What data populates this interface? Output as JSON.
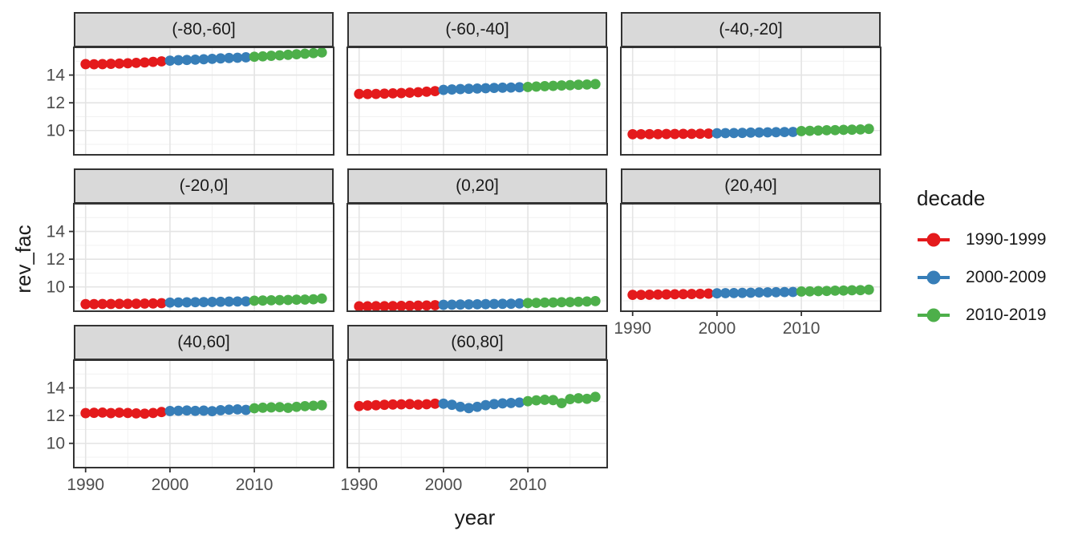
{
  "figure": {
    "y_axis_title": "rev_fac",
    "x_axis_title": "year",
    "legend": {
      "title": "decade",
      "items": [
        {
          "label": "1990-1999",
          "color": "#E41A1C"
        },
        {
          "label": "2000-2009",
          "color": "#377EB8"
        },
        {
          "label": "2010-2019",
          "color": "#4DAF4A"
        }
      ]
    }
  },
  "chart_data": {
    "type": "scatter",
    "title": "",
    "xlabel": "year",
    "ylabel": "rev_fac",
    "facet_labels": [
      "(-80,-60]",
      "(-60,-40]",
      "(-40,-20]",
      "(-20,0]",
      "(0,20]",
      "(20,40]",
      "(40,60]",
      "(60,80]"
    ],
    "x": [
      1990,
      1991,
      1992,
      1993,
      1994,
      1995,
      1996,
      1997,
      1998,
      1999,
      2000,
      2001,
      2002,
      2003,
      2004,
      2005,
      2006,
      2007,
      2008,
      2009,
      2010,
      2011,
      2012,
      2013,
      2014,
      2015,
      2016,
      2017,
      2018
    ],
    "series_by_decade": [
      {
        "name": "1990-1999",
        "color": "#E41A1C",
        "year_min": 1990,
        "year_max": 1999
      },
      {
        "name": "2000-2009",
        "color": "#377EB8",
        "year_min": 2000,
        "year_max": 2009
      },
      {
        "name": "2010-2019",
        "color": "#4DAF4A",
        "year_min": 2010,
        "year_max": 2019
      }
    ],
    "facets": [
      {
        "label": "(-80,-60]",
        "values": [
          14.79,
          14.78,
          14.79,
          14.81,
          14.83,
          14.85,
          14.88,
          14.91,
          14.95,
          14.99,
          15.04,
          15.07,
          15.09,
          15.11,
          15.14,
          15.17,
          15.2,
          15.23,
          15.25,
          15.28,
          15.32,
          15.35,
          15.39,
          15.42,
          15.46,
          15.5,
          15.54,
          15.58,
          15.63
        ]
      },
      {
        "label": "(-60,-40]",
        "values": [
          12.64,
          12.63,
          12.64,
          12.66,
          12.68,
          12.7,
          12.73,
          12.76,
          12.8,
          12.84,
          12.93,
          12.96,
          12.99,
          13.01,
          13.03,
          13.05,
          13.07,
          13.09,
          13.1,
          13.12,
          13.14,
          13.17,
          13.2,
          13.22,
          13.25,
          13.27,
          13.3,
          13.32,
          13.35
        ]
      },
      {
        "label": "(-40,-20]",
        "values": [
          9.73,
          9.73,
          9.74,
          9.74,
          9.75,
          9.75,
          9.76,
          9.76,
          9.77,
          9.78,
          9.8,
          9.81,
          9.82,
          9.83,
          9.85,
          9.86,
          9.87,
          9.88,
          9.89,
          9.9,
          9.96,
          9.98,
          10.0,
          10.02,
          10.03,
          10.05,
          10.06,
          10.08,
          10.12
        ]
      },
      {
        "label": "(-20,0]",
        "values": [
          8.76,
          8.76,
          8.77,
          8.77,
          8.78,
          8.78,
          8.79,
          8.8,
          8.81,
          8.83,
          8.87,
          8.88,
          8.89,
          8.9,
          8.91,
          8.92,
          8.93,
          8.94,
          8.95,
          8.96,
          9.01,
          9.02,
          9.04,
          9.05,
          9.06,
          9.08,
          9.09,
          9.11,
          9.16
        ]
      },
      {
        "label": "(0,20]",
        "values": [
          8.6,
          8.6,
          8.61,
          8.61,
          8.62,
          8.63,
          8.64,
          8.65,
          8.66,
          8.68,
          8.71,
          8.72,
          8.73,
          8.74,
          8.75,
          8.76,
          8.77,
          8.78,
          8.79,
          8.81,
          8.84,
          8.85,
          8.87,
          8.88,
          8.9,
          8.91,
          8.93,
          8.95,
          8.98
        ]
      },
      {
        "label": "(20,40]",
        "values": [
          9.43,
          9.43,
          9.44,
          9.45,
          9.46,
          9.47,
          9.48,
          9.49,
          9.5,
          9.52,
          9.54,
          9.55,
          9.56,
          9.57,
          9.58,
          9.6,
          9.61,
          9.62,
          9.63,
          9.64,
          9.67,
          9.68,
          9.7,
          9.71,
          9.73,
          9.74,
          9.76,
          9.77,
          9.8
        ]
      },
      {
        "label": "(40,60]",
        "values": [
          12.18,
          12.2,
          12.22,
          12.18,
          12.21,
          12.19,
          12.16,
          12.14,
          12.19,
          12.26,
          12.33,
          12.35,
          12.37,
          12.34,
          12.36,
          12.32,
          12.39,
          12.43,
          12.45,
          12.41,
          12.53,
          12.57,
          12.59,
          12.61,
          12.56,
          12.63,
          12.68,
          12.71,
          12.75
        ]
      },
      {
        "label": "(60,80]",
        "values": [
          12.69,
          12.73,
          12.75,
          12.78,
          12.8,
          12.81,
          12.83,
          12.79,
          12.82,
          12.86,
          12.86,
          12.78,
          12.63,
          12.54,
          12.63,
          12.75,
          12.83,
          12.88,
          12.91,
          12.94,
          13.04,
          13.1,
          13.14,
          13.12,
          12.9,
          13.19,
          13.25,
          13.21,
          13.35
        ]
      }
    ],
    "x_ticks": [
      1990,
      2000,
      2010
    ],
    "y_ticks": [
      10,
      12,
      14
    ],
    "x_minor_gridlines": [
      1995,
      2005,
      2015
    ],
    "y_minor_gridlines": [
      9,
      11,
      13,
      15
    ],
    "xlim": [
      1988.6,
      2019.4
    ],
    "ylim": [
      8.25,
      16.0
    ],
    "grid": true,
    "legend_position": "right"
  }
}
